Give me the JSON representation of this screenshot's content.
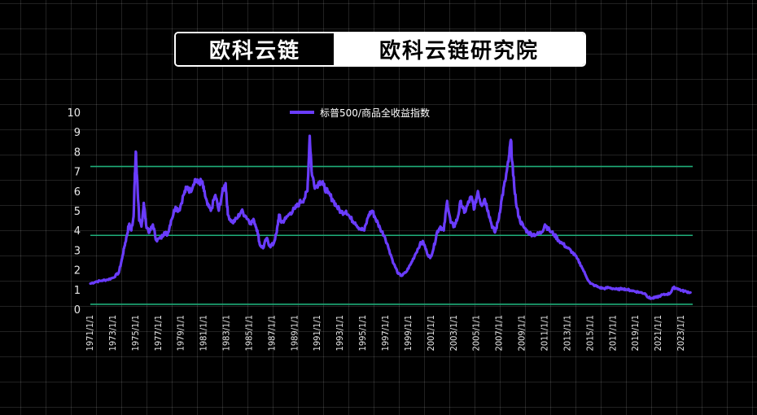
{
  "banner": {
    "brand": "欧科云链",
    "subtitle": "欧科云链研究院"
  },
  "colors": {
    "series": "#6a3cff",
    "reference_lines": "#1fae7a",
    "text": "#e8e8e8"
  },
  "chart_data": {
    "type": "line",
    "title": "",
    "xlabel": "",
    "ylabel": "",
    "ylim": [
      0,
      10
    ],
    "yticks": [
      0,
      1,
      2,
      3,
      4,
      5,
      6,
      7,
      8,
      9,
      10
    ],
    "xticks": [
      "1971/1/1",
      "1973/1/1",
      "1975/1/1",
      "1977/1/1",
      "1979/1/1",
      "1981/1/1",
      "1983/1/1",
      "1985/1/1",
      "1987/1/1",
      "1989/1/1",
      "1991/1/1",
      "1993/1/1",
      "1995/1/1",
      "1997/1/1",
      "1999/1/1",
      "2001/1/1",
      "2003/1/1",
      "2005/1/1",
      "2007/1/1",
      "2009/1/1",
      "2011/1/1",
      "2013/1/1",
      "2015/1/1",
      "2017/1/1",
      "2019/1/1",
      "2021/1/1",
      "2023/1/1"
    ],
    "legend": {
      "position": "top-center"
    },
    "grid": true,
    "reference_lines": [
      7.25,
      3.75,
      0.25
    ],
    "series": [
      {
        "name": "标普500/商品全收益指数",
        "points": [
          [
            1971.0,
            1.3
          ],
          [
            1971.5,
            1.4
          ],
          [
            1972.0,
            1.45
          ],
          [
            1972.5,
            1.5
          ],
          [
            1973.0,
            1.6
          ],
          [
            1973.5,
            1.85
          ],
          [
            1973.8,
            2.6
          ],
          [
            1974.0,
            3.2
          ],
          [
            1974.2,
            3.7
          ],
          [
            1974.4,
            4.3
          ],
          [
            1974.6,
            4.0
          ],
          [
            1974.8,
            4.7
          ],
          [
            1974.9,
            6.5
          ],
          [
            1975.0,
            8.0
          ],
          [
            1975.1,
            6.8
          ],
          [
            1975.3,
            4.5
          ],
          [
            1975.5,
            4.2
          ],
          [
            1975.7,
            5.4
          ],
          [
            1975.9,
            4.3
          ],
          [
            1976.2,
            3.9
          ],
          [
            1976.5,
            4.3
          ],
          [
            1976.8,
            3.5
          ],
          [
            1977.2,
            3.6
          ],
          [
            1977.5,
            3.9
          ],
          [
            1977.8,
            3.8
          ],
          [
            1978.1,
            4.5
          ],
          [
            1978.5,
            5.2
          ],
          [
            1978.8,
            5.0
          ],
          [
            1979.2,
            5.8
          ],
          [
            1979.5,
            6.2
          ],
          [
            1979.8,
            6.0
          ],
          [
            1980.2,
            6.6
          ],
          [
            1980.5,
            6.4
          ],
          [
            1980.8,
            6.5
          ],
          [
            1981.0,
            6.0
          ],
          [
            1981.3,
            5.3
          ],
          [
            1981.6,
            5.0
          ],
          [
            1982.0,
            5.8
          ],
          [
            1982.3,
            5.0
          ],
          [
            1982.6,
            5.9
          ],
          [
            1982.9,
            6.4
          ],
          [
            1983.1,
            4.8
          ],
          [
            1983.5,
            4.4
          ],
          [
            1983.9,
            4.6
          ],
          [
            1984.3,
            5.0
          ],
          [
            1984.7,
            4.7
          ],
          [
            1985.1,
            4.4
          ],
          [
            1985.4,
            4.5
          ],
          [
            1985.7,
            4.0
          ],
          [
            1985.9,
            3.3
          ],
          [
            1986.2,
            3.1
          ],
          [
            1986.5,
            3.6
          ],
          [
            1986.8,
            3.2
          ],
          [
            1987.1,
            3.3
          ],
          [
            1987.4,
            3.9
          ],
          [
            1987.6,
            4.8
          ],
          [
            1987.8,
            4.4
          ],
          [
            1988.2,
            4.6
          ],
          [
            1988.6,
            4.9
          ],
          [
            1989.0,
            5.1
          ],
          [
            1989.4,
            5.4
          ],
          [
            1989.8,
            5.6
          ],
          [
            1990.1,
            6.0
          ],
          [
            1990.3,
            8.8
          ],
          [
            1990.5,
            6.8
          ],
          [
            1990.8,
            6.2
          ],
          [
            1991.2,
            6.5
          ],
          [
            1991.5,
            6.3
          ],
          [
            1991.9,
            5.9
          ],
          [
            1992.3,
            5.6
          ],
          [
            1992.7,
            5.2
          ],
          [
            1993.1,
            4.9
          ],
          [
            1993.5,
            5.0
          ],
          [
            1993.9,
            4.6
          ],
          [
            1994.3,
            4.4
          ],
          [
            1994.7,
            4.1
          ],
          [
            1995.1,
            4.0
          ],
          [
            1995.5,
            4.8
          ],
          [
            1995.8,
            5.0
          ],
          [
            1996.1,
            4.6
          ],
          [
            1996.5,
            4.1
          ],
          [
            1996.9,
            3.7
          ],
          [
            1997.3,
            3.0
          ],
          [
            1997.7,
            2.3
          ],
          [
            1998.1,
            1.8
          ],
          [
            1998.4,
            1.7
          ],
          [
            1998.8,
            1.9
          ],
          [
            1999.2,
            2.3
          ],
          [
            1999.6,
            2.8
          ],
          [
            2000.0,
            3.3
          ],
          [
            2000.3,
            3.4
          ],
          [
            2000.6,
            2.9
          ],
          [
            2000.9,
            2.6
          ],
          [
            2001.2,
            3.1
          ],
          [
            2001.5,
            3.9
          ],
          [
            2001.8,
            4.2
          ],
          [
            2002.1,
            4.0
          ],
          [
            2002.4,
            5.5
          ],
          [
            2002.7,
            4.4
          ],
          [
            2003.0,
            4.2
          ],
          [
            2003.3,
            4.6
          ],
          [
            2003.6,
            5.5
          ],
          [
            2003.9,
            4.9
          ],
          [
            2004.2,
            5.3
          ],
          [
            2004.5,
            5.7
          ],
          [
            2004.8,
            5.1
          ],
          [
            2005.1,
            6.0
          ],
          [
            2005.4,
            5.3
          ],
          [
            2005.7,
            5.6
          ],
          [
            2006.0,
            5.0
          ],
          [
            2006.3,
            4.3
          ],
          [
            2006.6,
            3.9
          ],
          [
            2006.9,
            4.5
          ],
          [
            2007.2,
            5.6
          ],
          [
            2007.5,
            6.5
          ],
          [
            2007.8,
            7.5
          ],
          [
            2008.0,
            8.6
          ],
          [
            2008.2,
            6.8
          ],
          [
            2008.5,
            5.2
          ],
          [
            2008.8,
            4.5
          ],
          [
            2009.1,
            4.2
          ],
          [
            2009.5,
            3.9
          ],
          [
            2009.9,
            3.8
          ],
          [
            2010.3,
            3.8
          ],
          [
            2010.7,
            3.9
          ],
          [
            2011.0,
            4.3
          ],
          [
            2011.4,
            4.0
          ],
          [
            2011.8,
            3.8
          ],
          [
            2012.2,
            3.5
          ],
          [
            2012.6,
            3.3
          ],
          [
            2013.0,
            3.1
          ],
          [
            2013.4,
            2.9
          ],
          [
            2013.8,
            2.6
          ],
          [
            2014.2,
            2.2
          ],
          [
            2014.6,
            1.7
          ],
          [
            2015.0,
            1.3
          ],
          [
            2015.4,
            1.2
          ],
          [
            2015.8,
            1.1
          ],
          [
            2016.2,
            1.05
          ],
          [
            2016.6,
            1.1
          ],
          [
            2017.0,
            1.05
          ],
          [
            2017.4,
            1.0
          ],
          [
            2017.8,
            1.05
          ],
          [
            2018.2,
            1.0
          ],
          [
            2018.6,
            0.95
          ],
          [
            2019.0,
            0.9
          ],
          [
            2019.4,
            0.85
          ],
          [
            2019.8,
            0.8
          ],
          [
            2020.1,
            0.6
          ],
          [
            2020.4,
            0.55
          ],
          [
            2020.8,
            0.6
          ],
          [
            2021.2,
            0.7
          ],
          [
            2021.6,
            0.75
          ],
          [
            2022.0,
            0.8
          ],
          [
            2022.3,
            1.1
          ],
          [
            2022.7,
            1.05
          ],
          [
            2023.0,
            0.95
          ],
          [
            2023.4,
            0.9
          ],
          [
            2023.8,
            0.85
          ]
        ]
      }
    ]
  }
}
